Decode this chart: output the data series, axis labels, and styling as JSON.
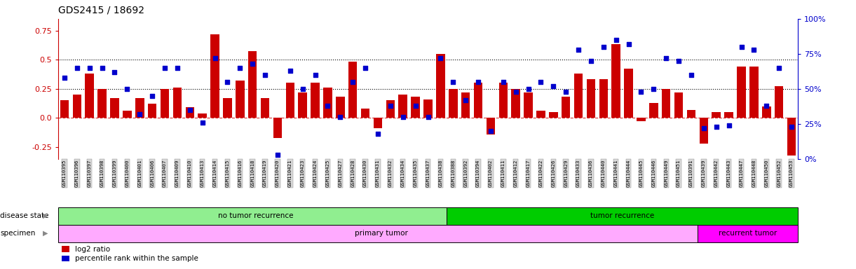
{
  "title": "GDS2415 / 18692",
  "samples": [
    "GSM110395",
    "GSM110396",
    "GSM110397",
    "GSM110398",
    "GSM110399",
    "GSM110400",
    "GSM110401",
    "GSM110406",
    "GSM110407",
    "GSM110409",
    "GSM110410",
    "GSM110413",
    "GSM110414",
    "GSM110415",
    "GSM110416",
    "GSM110418",
    "GSM110419",
    "GSM110420",
    "GSM110421",
    "GSM110423",
    "GSM110424",
    "GSM110425",
    "GSM110427",
    "GSM110428",
    "GSM110430",
    "GSM110431",
    "GSM110432",
    "GSM110434",
    "GSM110435",
    "GSM110437",
    "GSM110438",
    "GSM110388",
    "GSM110392",
    "GSM110394",
    "GSM110402",
    "GSM110411",
    "GSM110412",
    "GSM110417",
    "GSM110422",
    "GSM110426",
    "GSM110429",
    "GSM110433",
    "GSM110436",
    "GSM110440",
    "GSM110441",
    "GSM110444",
    "GSM110445",
    "GSM110446",
    "GSM110449",
    "GSM110451",
    "GSM110391",
    "GSM110439",
    "GSM110442",
    "GSM110443",
    "GSM110447",
    "GSM110448",
    "GSM110450",
    "GSM110452",
    "GSM110453"
  ],
  "log2_ratio": [
    0.15,
    0.2,
    0.38,
    0.25,
    0.17,
    0.06,
    0.17,
    0.12,
    0.25,
    0.26,
    0.09,
    0.04,
    0.72,
    0.17,
    0.32,
    0.57,
    0.17,
    -0.17,
    0.3,
    0.22,
    0.3,
    0.26,
    0.18,
    0.48,
    0.08,
    -0.09,
    0.15,
    0.2,
    0.18,
    0.16,
    0.55,
    0.25,
    0.22,
    0.3,
    -0.14,
    0.3,
    0.25,
    0.22,
    0.06,
    0.05,
    0.18,
    0.38,
    0.33,
    0.33,
    0.63,
    0.42,
    -0.03,
    0.13,
    0.25,
    0.22,
    0.07,
    -0.22,
    0.05,
    0.05,
    0.44,
    0.44,
    0.1,
    0.27,
    -0.32
  ],
  "percentile": [
    58,
    65,
    65,
    65,
    62,
    50,
    32,
    45,
    65,
    65,
    35,
    26,
    72,
    55,
    65,
    68,
    60,
    3,
    63,
    50,
    60,
    38,
    30,
    55,
    65,
    18,
    38,
    30,
    38,
    30,
    72,
    55,
    42,
    55,
    20,
    55,
    48,
    50,
    55,
    52,
    48,
    78,
    70,
    80,
    85,
    82,
    48,
    50,
    72,
    70,
    60,
    22,
    23,
    24,
    80,
    78,
    38,
    65,
    23
  ],
  "no_recurrence_count": 31,
  "recurrence_count": 28,
  "primary_tumor_count": 51,
  "recurrent_tumor_count": 8,
  "bar_color": "#cc0000",
  "scatter_color": "#0000cc",
  "no_recurrence_color": "#90ee90",
  "recurrence_color": "#00cc00",
  "primary_color": "#ffaaff",
  "recurrent_color": "#ff00ff",
  "ylim": [
    -0.35,
    0.85
  ],
  "yticks": [
    -0.25,
    0.0,
    0.25,
    0.5,
    0.75
  ],
  "right_yticks": [
    0,
    25,
    50,
    75,
    100
  ],
  "hlines": [
    0.5,
    0.25
  ],
  "background_color": "#ffffff"
}
